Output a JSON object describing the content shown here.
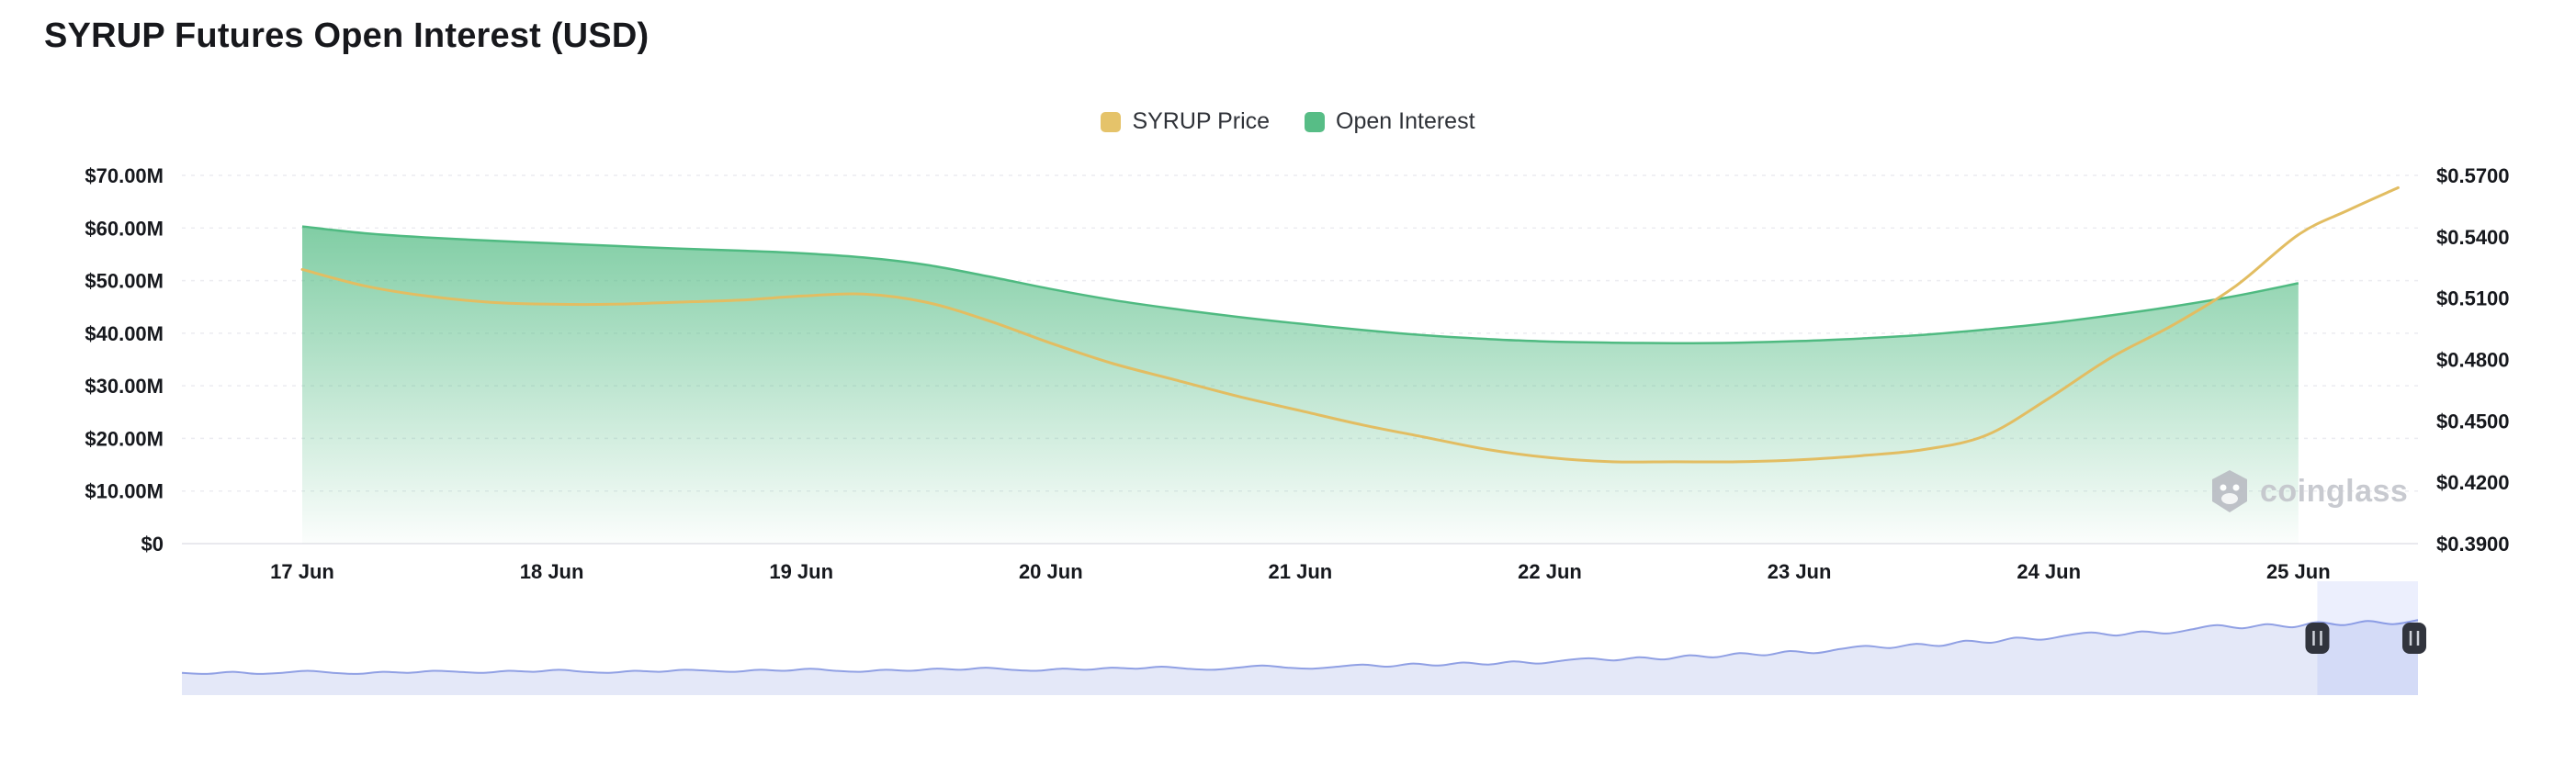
{
  "page": {
    "title": "SYRUP Futures Open Interest (USD)"
  },
  "legend": {
    "items": [
      {
        "label": "SYRUP Price",
        "color": "#e5c36a"
      },
      {
        "label": "Open Interest",
        "color": "#57bd86"
      }
    ]
  },
  "watermark": {
    "text": "coinglass"
  },
  "chart_data": {
    "type": "area",
    "title": "SYRUP Futures Open Interest (USD)",
    "x_axis": {
      "labels": [
        "17 Jun",
        "18 Jun",
        "19 Jun",
        "20 Jun",
        "21 Jun",
        "22 Jun",
        "23 Jun",
        "24 Jun",
        "25 Jun"
      ],
      "start_day": 17
    },
    "left_axis": {
      "name": "Open Interest (USD)",
      "tick_labels": [
        "$70.00M",
        "$60.00M",
        "$50.00M",
        "$40.00M",
        "$30.00M",
        "$20.00M",
        "$10.00M",
        "$0"
      ],
      "min": 0,
      "max": 70000000
    },
    "right_axis": {
      "name": "SYRUP Price (USD)",
      "tick_labels": [
        "$0.5700",
        "$0.5400",
        "$0.5100",
        "$0.4800",
        "$0.4500",
        "$0.4200",
        "$0.3900"
      ],
      "min": 0.39,
      "max": 0.57
    },
    "series": [
      {
        "name": "Open Interest",
        "type": "area",
        "axis": "left",
        "color": "#4fba81",
        "unit": "USD millions",
        "x": [
          17,
          17.25,
          17.5,
          17.75,
          18,
          18.25,
          18.5,
          18.75,
          19,
          19.25,
          19.5,
          19.75,
          20,
          20.25,
          20.5,
          20.75,
          21,
          21.25,
          21.5,
          21.75,
          22,
          22.25,
          22.5,
          22.75,
          23,
          23.25,
          23.5,
          23.75,
          24,
          24.25,
          24.5,
          24.75,
          25
        ],
        "values": [
          60.3,
          59.0,
          58.2,
          57.6,
          57.1,
          56.6,
          56.1,
          55.7,
          55.2,
          54.4,
          53.0,
          50.8,
          48.4,
          46.3,
          44.6,
          43.1,
          41.8,
          40.6,
          39.6,
          38.9,
          38.4,
          38.2,
          38.1,
          38.2,
          38.5,
          39.0,
          39.7,
          40.7,
          41.9,
          43.4,
          45.1,
          47.1,
          49.5
        ]
      },
      {
        "name": "SYRUP Price",
        "type": "line",
        "axis": "right",
        "color": "#e2bd62",
        "unit": "USD",
        "x": [
          17,
          17.25,
          17.5,
          17.75,
          18,
          18.25,
          18.5,
          18.75,
          19,
          19.25,
          19.5,
          19.75,
          20,
          20.25,
          20.5,
          20.75,
          21,
          21.25,
          21.5,
          21.75,
          22,
          22.25,
          22.5,
          22.75,
          23,
          23.25,
          23.5,
          23.75,
          24,
          24.25,
          24.5,
          24.75,
          25,
          25.2,
          25.4
        ],
        "values": [
          0.524,
          0.516,
          0.511,
          0.508,
          0.507,
          0.507,
          0.508,
          0.509,
          0.511,
          0.512,
          0.508,
          0.499,
          0.488,
          0.478,
          0.47,
          0.462,
          0.455,
          0.448,
          0.442,
          0.436,
          0.432,
          0.43,
          0.43,
          0.43,
          0.431,
          0.433,
          0.436,
          0.443,
          0.461,
          0.481,
          0.497,
          0.516,
          0.541,
          0.553,
          0.564
        ]
      }
    ],
    "navigator": {
      "selection_start_frac": 0.955,
      "selection_end_frac": 1.0,
      "line_color": "#90a0e4",
      "fill_color": "#e4e8f8",
      "values": [
        0.16,
        0.15,
        0.17,
        0.15,
        0.16,
        0.18,
        0.16,
        0.15,
        0.17,
        0.16,
        0.18,
        0.17,
        0.16,
        0.18,
        0.17,
        0.19,
        0.17,
        0.16,
        0.18,
        0.17,
        0.19,
        0.18,
        0.17,
        0.19,
        0.18,
        0.2,
        0.18,
        0.17,
        0.19,
        0.18,
        0.2,
        0.19,
        0.21,
        0.19,
        0.18,
        0.2,
        0.19,
        0.21,
        0.2,
        0.22,
        0.2,
        0.19,
        0.21,
        0.23,
        0.21,
        0.2,
        0.22,
        0.24,
        0.22,
        0.25,
        0.23,
        0.26,
        0.24,
        0.27,
        0.25,
        0.28,
        0.3,
        0.28,
        0.31,
        0.29,
        0.33,
        0.31,
        0.35,
        0.33,
        0.37,
        0.35,
        0.39,
        0.42,
        0.4,
        0.44,
        0.42,
        0.47,
        0.45,
        0.5,
        0.48,
        0.52,
        0.55,
        0.52,
        0.56,
        0.54,
        0.58,
        0.62,
        0.59,
        0.63,
        0.6,
        0.65,
        0.62,
        0.66,
        0.63,
        0.67
      ]
    }
  }
}
